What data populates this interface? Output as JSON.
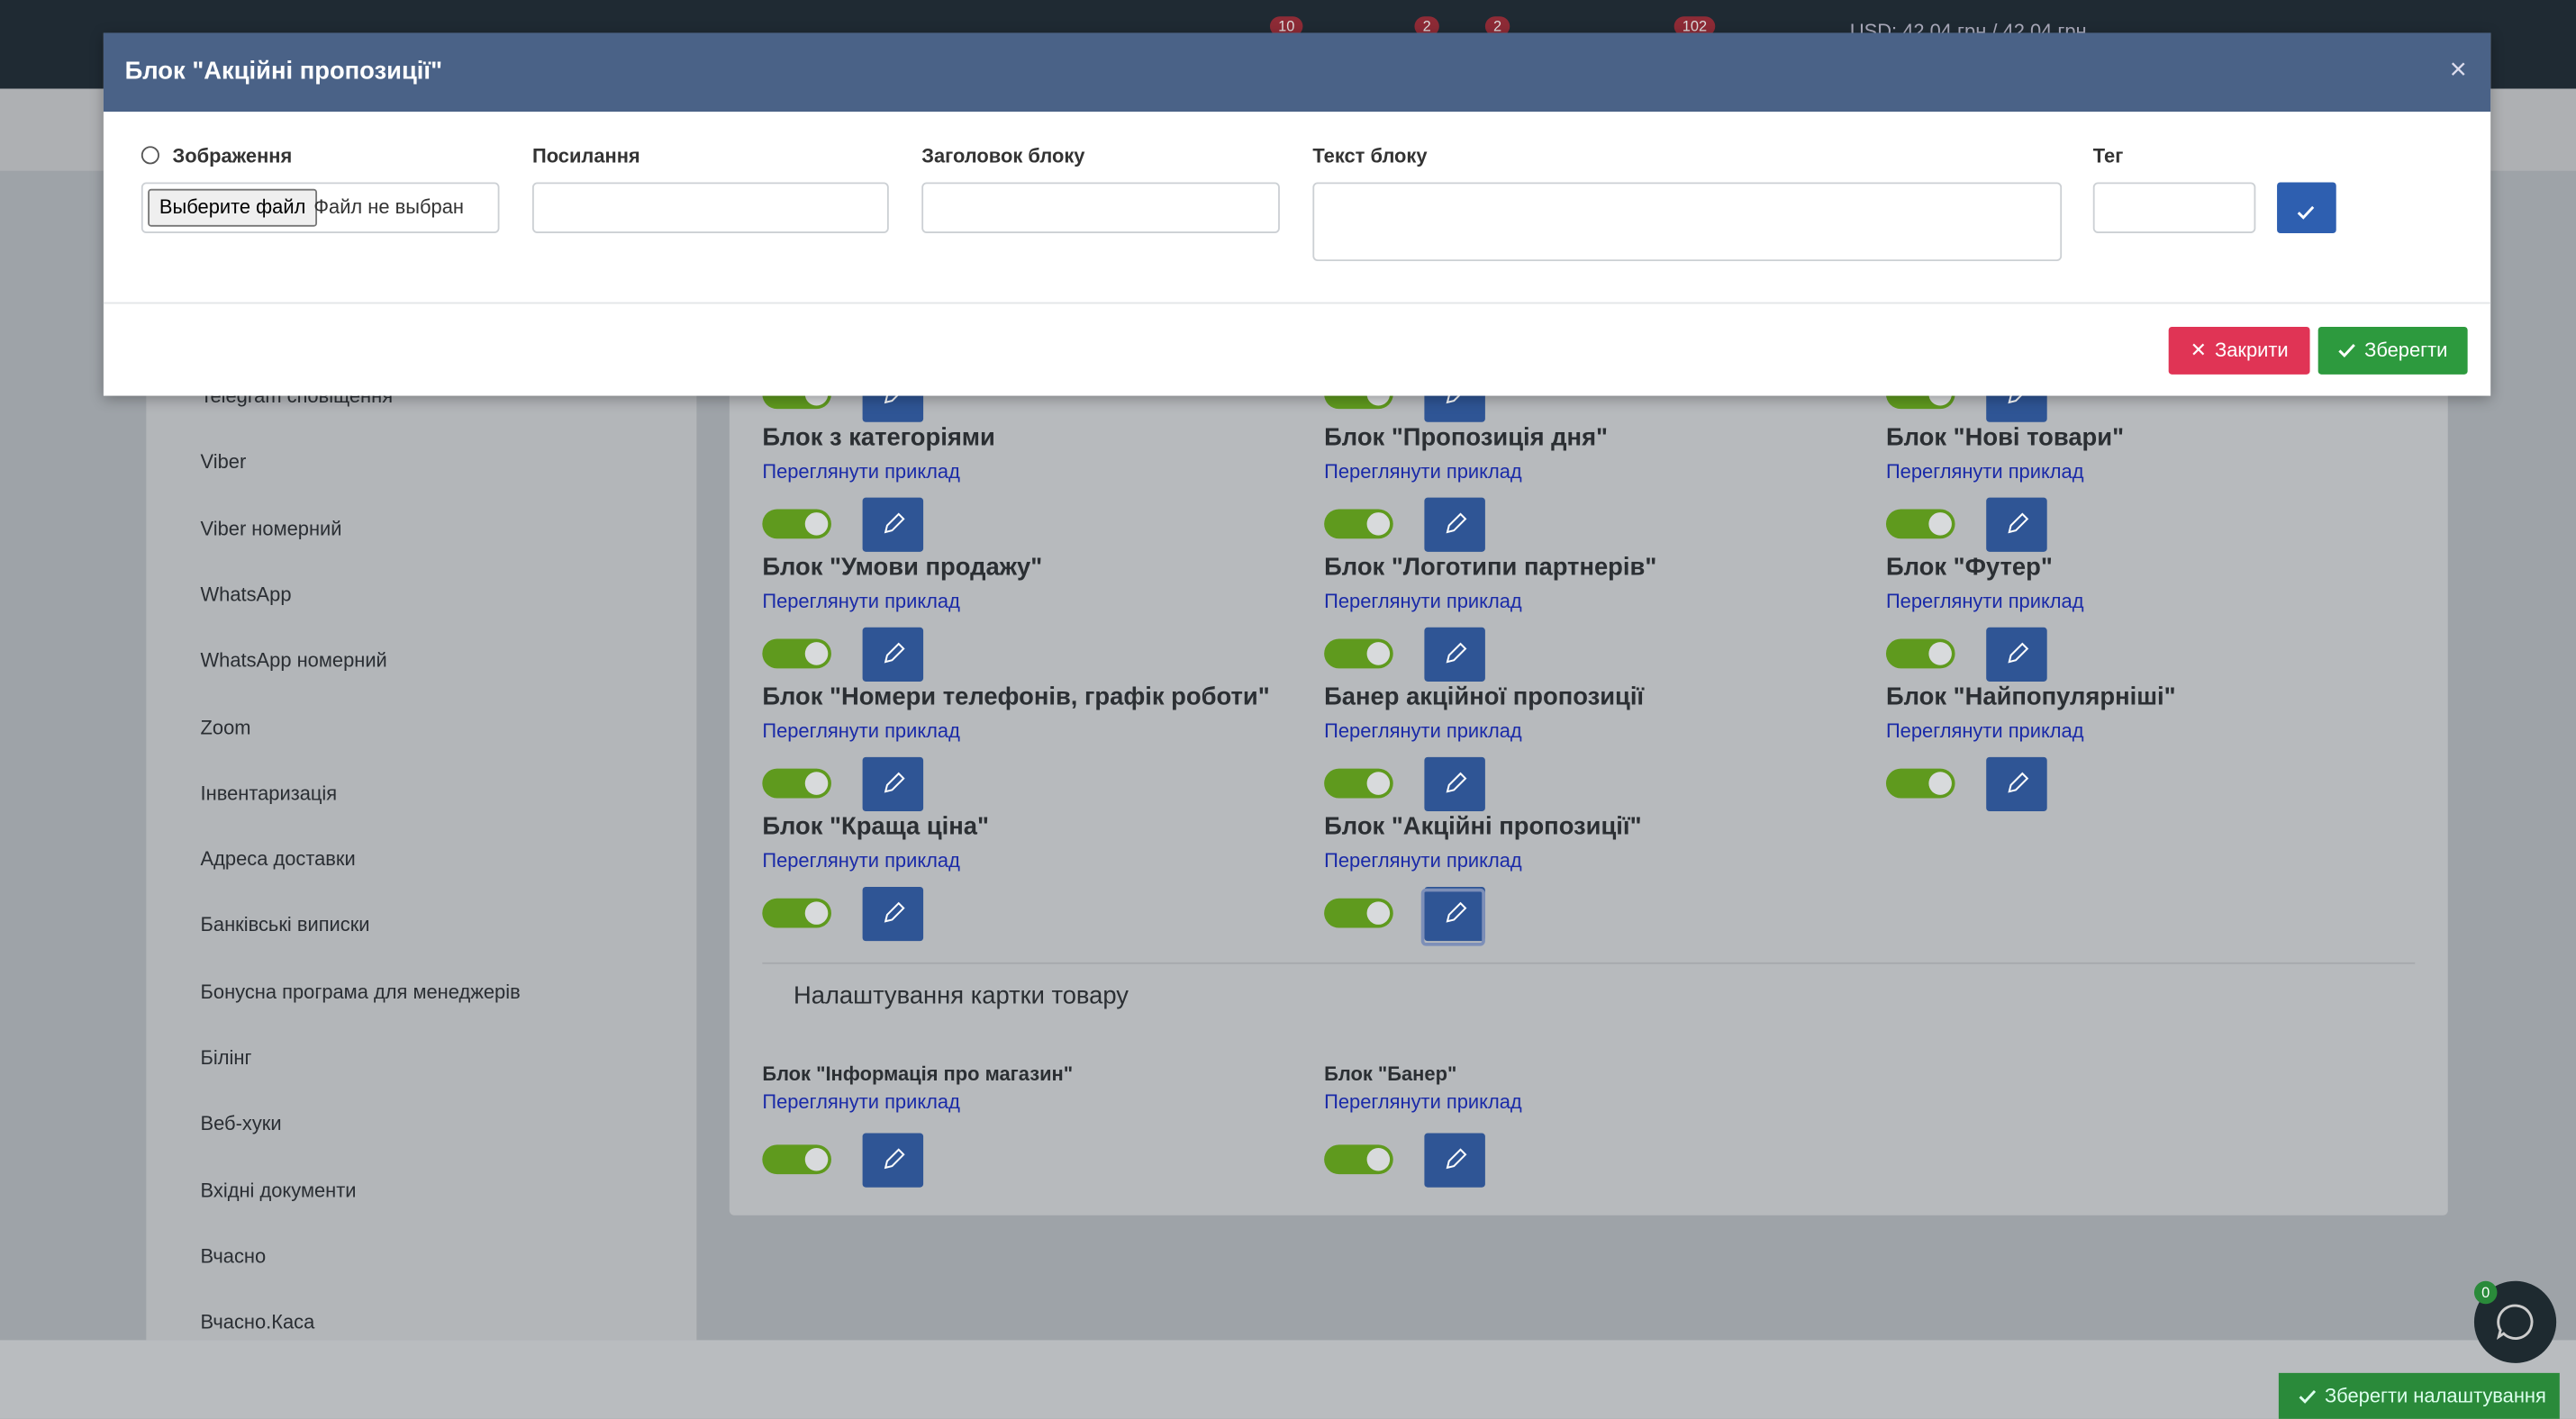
{
  "topbar": {
    "badges": [
      "10",
      "2",
      "2",
      "102"
    ],
    "currency": "USD: 42,04 грн / 42,04 грн"
  },
  "sidebar": {
    "items": [
      "Telegram сповіщення",
      "Viber",
      "Viber номерний",
      "WhatsApp",
      "WhatsApp номерний",
      "Zoom",
      "Інвентаризація",
      "Адреса доставки",
      "Банківські виписки",
      "Бонусна програма для менеджерів",
      "Білінг",
      "Веб-хуки",
      "Вхідні документи",
      "Вчасно",
      "Вчасно.Каса"
    ]
  },
  "blocks": [
    {
      "title": "Блок з категоріями",
      "link": "Переглянути приклад"
    },
    {
      "title": "Блок \"Пропозиція дня\"",
      "link": "Переглянути приклад"
    },
    {
      "title": "Блок \"Нові товари\"",
      "link": "Переглянути приклад"
    },
    {
      "title": "Блок \"Умови продажу\"",
      "link": "Переглянути приклад"
    },
    {
      "title": "Блок \"Логотипи партнерів\"",
      "link": "Переглянути приклад"
    },
    {
      "title": "Блок \"Футер\"",
      "link": "Переглянути приклад"
    },
    {
      "title": "Блок \"Номери телефонів, графік роботи\"",
      "link": "Переглянути приклад"
    },
    {
      "title": "Банер акційної пропозиції",
      "link": "Переглянути приклад"
    },
    {
      "title": "Блок \"Найпопулярніші\"",
      "link": "Переглянути приклад"
    },
    {
      "title": "Блок \"Краща ціна\"",
      "link": "Переглянути приклад"
    },
    {
      "title": "Блок \"Акційні пропозиції\"",
      "link": "Переглянути приклад"
    }
  ],
  "product_card": {
    "title": "Налаштування картки товару",
    "blocks": [
      {
        "title": "Блок \"Інформація про магазин\"",
        "link": "Переглянути приклад"
      },
      {
        "title": "Блок \"Банер\"",
        "link": "Переглянути приклад"
      }
    ]
  },
  "modal": {
    "title": "Блок \"Акційні пропозиції\"",
    "fields": {
      "image": "Зображення",
      "file_button": "Выберите файл",
      "file_status": "Файл не выбран",
      "link": "Посилання",
      "heading": "Заголовок блоку",
      "text": "Текст блоку",
      "tag": "Тег"
    },
    "close": "Закрити",
    "save": "Зберегти"
  },
  "footer": {
    "save_settings": "Зберегти налаштування",
    "chat_badge": "0"
  }
}
